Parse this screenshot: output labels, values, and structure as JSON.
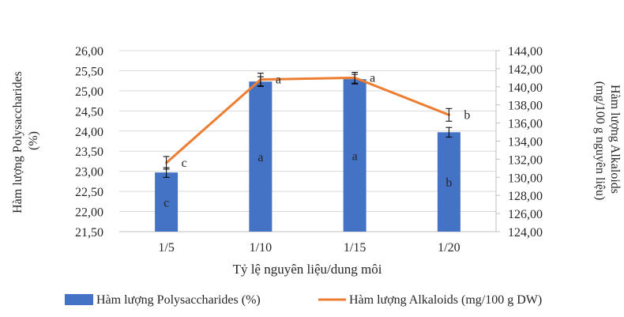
{
  "chart_data": {
    "type": "bar",
    "categories": [
      "1/5",
      "1/10",
      "1/15",
      "1/20"
    ],
    "xlabel": "Tỷ lệ nguyên liệu/dung môi",
    "ylabel_left": "Hàm lượng Polysaccharides (%)",
    "ylabel_right": "Hàm lượng Alkaloids (mg/100 g nguyên liệu)",
    "ylim_left": [
      21.5,
      26.0
    ],
    "ylim_right": [
      124.0,
      144.0
    ],
    "yticks_left": [
      "21,50",
      "22,00",
      "22,50",
      "23,00",
      "23,50",
      "24,00",
      "24,50",
      "25,00",
      "25,50",
      "26,00"
    ],
    "yticks_right": [
      "124,00",
      "126,00",
      "128,00",
      "130,00",
      "132,00",
      "134,00",
      "136,00",
      "138,00",
      "140,00",
      "142,00",
      "144,00"
    ],
    "grid": true,
    "legend_position": "bottom",
    "series": [
      {
        "name": "Hàm lượng Polysaccharides (%)",
        "type": "bar",
        "axis": "left",
        "color": "#4472C4",
        "values": [
          22.97,
          25.23,
          25.29,
          23.97
        ],
        "errors": [
          0.12,
          0.12,
          0.12,
          0.12
        ],
        "labels": [
          "c",
          "a",
          "a",
          "b"
        ]
      },
      {
        "name": "Hàm lượng Alkaloids (mg/100 g DW)",
        "type": "line",
        "axis": "right",
        "color": "#ED7D31",
        "values": [
          131.6,
          140.8,
          141.0,
          136.9
        ],
        "errors": [
          0.7,
          0.7,
          0.6,
          0.7
        ],
        "labels": [
          "c",
          "a",
          "a",
          "b"
        ]
      }
    ]
  }
}
